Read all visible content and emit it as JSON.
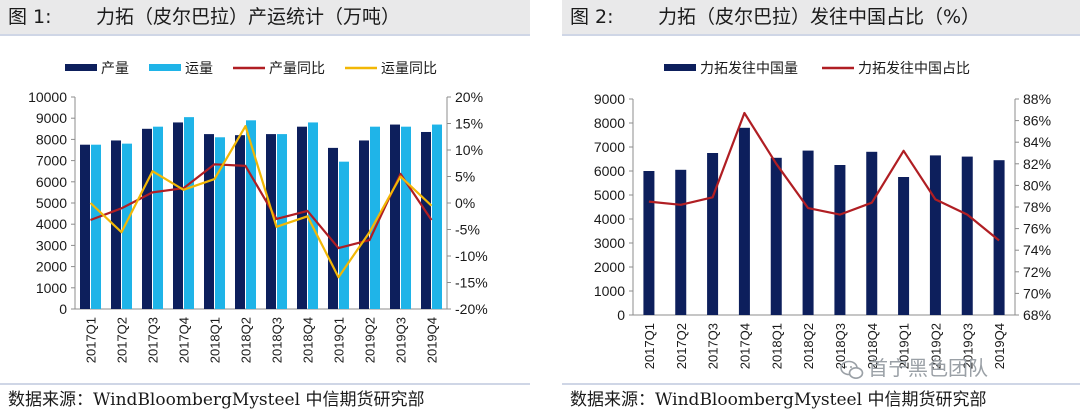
{
  "figure1": {
    "label": "图 1:",
    "title": "力拓（皮尔巴拉）产运统计（万吨）",
    "source": "数据来源：WindBloombergMysteel 中信期货研究部"
  },
  "figure2": {
    "label": "图 2:",
    "title": "力拓（皮尔巴拉）发往中国占比（%）",
    "source": "数据来源：WindBloombergMysteel 中信期货研究部"
  },
  "watermark": "首宁黑色团队",
  "colors": {
    "navy": "#0d1f5c",
    "cyan": "#1fb4e8",
    "red": "#b01e23",
    "yellow": "#f2b705"
  },
  "chart_data": [
    {
      "type": "bar",
      "categories": [
        "2017Q1",
        "2017Q2",
        "2017Q3",
        "2017Q4",
        "2018Q1",
        "2018Q2",
        "2018Q3",
        "2018Q4",
        "2019Q1",
        "2019Q2",
        "2019Q3",
        "2019Q4"
      ],
      "series": [
        {
          "name": "产量",
          "type": "bar",
          "axis": "left",
          "color": "#0d1f5c",
          "values": [
            7750,
            7950,
            8500,
            8800,
            8250,
            8200,
            8250,
            8600,
            7600,
            7950,
            8700,
            8350
          ]
        },
        {
          "name": "运量",
          "type": "bar",
          "axis": "left",
          "color": "#1fb4e8",
          "values": [
            7750,
            7800,
            8600,
            9050,
            8100,
            8900,
            8250,
            8800,
            6950,
            8600,
            8600,
            8700
          ]
        },
        {
          "name": "产量同比",
          "type": "line",
          "axis": "right",
          "color": "#b01e23",
          "values": [
            -3.2,
            -1.0,
            2.0,
            2.8,
            7.3,
            7.0,
            -3.0,
            -1.5,
            -8.5,
            -7.0,
            5.5,
            -3.2
          ]
        },
        {
          "name": "运量同比",
          "type": "line",
          "axis": "right",
          "color": "#f2b705",
          "values": [
            0.0,
            -5.5,
            6.0,
            2.5,
            4.5,
            14.5,
            -4.5,
            -2.5,
            -14.0,
            -5.5,
            5.0,
            -0.5
          ]
        }
      ],
      "ylim": [
        0,
        10000
      ],
      "yticks": [
        0,
        1000,
        2000,
        3000,
        4000,
        5000,
        6000,
        7000,
        8000,
        9000,
        10000
      ],
      "y2lim": [
        -20,
        20
      ],
      "y2ticks": [
        "20%",
        "15%",
        "10%",
        "5%",
        "0%",
        "-5%",
        "-10%",
        "-15%",
        "-20%"
      ],
      "legend": "top",
      "grid": false
    },
    {
      "type": "bar",
      "categories": [
        "2017Q1",
        "2017Q2",
        "2017Q3",
        "2017Q4",
        "2018Q1",
        "2018Q2",
        "2018Q3",
        "2018Q4",
        "2019Q1",
        "2019Q2",
        "2019Q3",
        "2019Q4"
      ],
      "series": [
        {
          "name": "力拓发往中国量",
          "type": "bar",
          "axis": "left",
          "color": "#0d1f5c",
          "values": [
            6000,
            6050,
            6750,
            7800,
            6550,
            6850,
            6250,
            6800,
            5750,
            6650,
            6600,
            6450
          ]
        },
        {
          "name": "力拓发往中国占比",
          "type": "line",
          "axis": "right",
          "color": "#b01e23",
          "values": [
            78.5,
            78.2,
            78.9,
            86.7,
            82.0,
            77.9,
            77.3,
            78.4,
            83.2,
            78.7,
            77.3,
            74.9
          ]
        }
      ],
      "ylim": [
        0,
        9000
      ],
      "yticks": [
        0,
        1000,
        2000,
        3000,
        4000,
        5000,
        6000,
        7000,
        8000,
        9000
      ],
      "y2lim": [
        68,
        88
      ],
      "y2ticks": [
        "88%",
        "86%",
        "84%",
        "82%",
        "80%",
        "78%",
        "76%",
        "74%",
        "72%",
        "70%",
        "68%"
      ],
      "legend": "top",
      "grid": false
    }
  ]
}
